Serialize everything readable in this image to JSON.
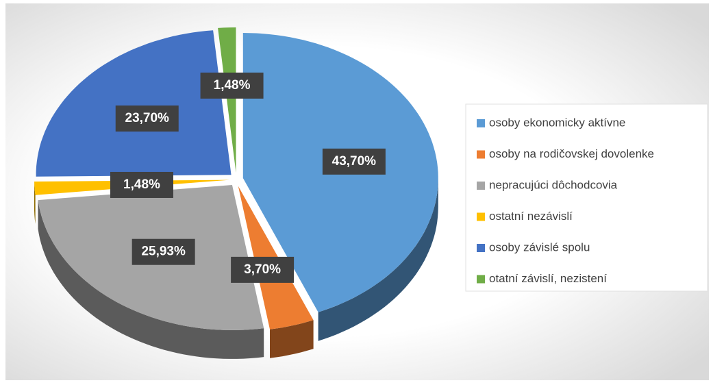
{
  "chart_data": {
    "type": "pie",
    "categories": [
      "osoby ekonomicky aktívne",
      "osoby na rodičovskej dovolenke",
      "nepracujúci dôchodcovia",
      "ostatní nezávislí",
      "osoby závislé spolu",
      "otatní závislí, nezistení"
    ],
    "values": [
      43.7,
      3.7,
      25.93,
      1.48,
      23.7,
      1.48
    ],
    "value_labels": [
      "43,70%",
      "3,70%",
      "25,93%",
      "1,48%",
      "23,70%",
      "1,48%"
    ],
    "colors": [
      "#5b9bd5",
      "#ed7d31",
      "#a5a5a5",
      "#ffc000",
      "#4472c4",
      "#70ad47"
    ],
    "legend": "right"
  }
}
